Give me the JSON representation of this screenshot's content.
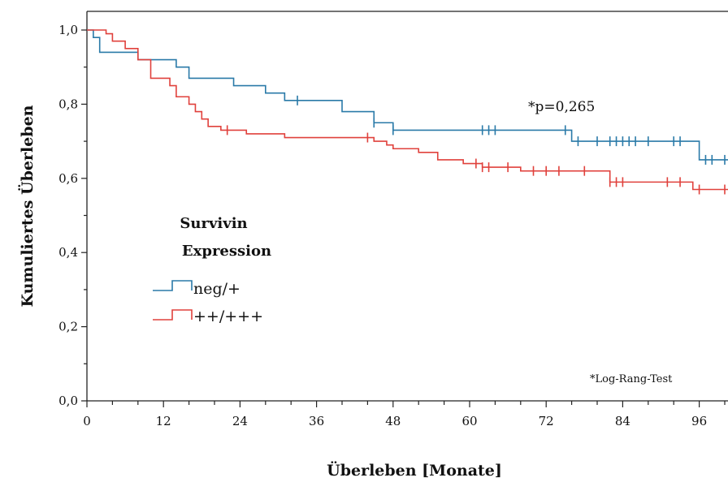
{
  "chart_data": {
    "type": "line",
    "subtype": "kaplan-meier step curve",
    "xlabel": "Überleben [Monate]",
    "ylabel": "Kumuliertes Überleben",
    "xlim": [
      0,
      101
    ],
    "ylim": [
      0,
      1.02
    ],
    "x_ticks": [
      0,
      12,
      24,
      36,
      48,
      60,
      72,
      84,
      96
    ],
    "x_minor_step": 4,
    "y_ticks": [
      0,
      0.2,
      0.4,
      0.6,
      0.8,
      1.0
    ],
    "y_tick_labels": [
      "0,0",
      "0,2",
      "0,4",
      "0,6",
      "0,8",
      "1,0"
    ],
    "y_minor_step": 0.1,
    "grid": false,
    "legend": {
      "title_line1": "Survivin",
      "title_line2": "Expression",
      "placement": "center-left"
    },
    "annotations": {
      "p_value": "*p=0,265",
      "test": "*Log-Rang-Test"
    },
    "series": [
      {
        "name": "neg/+",
        "color": "#2a7aa8",
        "steps": [
          [
            0,
            1.0
          ],
          [
            1,
            0.98
          ],
          [
            2,
            0.94
          ],
          [
            8,
            0.92
          ],
          [
            14,
            0.9
          ],
          [
            16,
            0.87
          ],
          [
            23,
            0.85
          ],
          [
            28,
            0.83
          ],
          [
            31,
            0.81
          ],
          [
            40,
            0.78
          ],
          [
            45,
            0.75
          ],
          [
            48,
            0.73
          ],
          [
            76,
            0.7
          ],
          [
            96,
            0.65
          ]
        ],
        "censored": [
          33,
          45,
          48,
          62,
          63,
          64,
          75,
          77,
          80,
          82,
          83,
          84,
          85,
          86,
          88,
          92,
          93,
          97,
          98,
          100
        ]
      },
      {
        "name": "++/+++",
        "color": "#e0413c",
        "steps": [
          [
            0,
            1.0
          ],
          [
            3,
            0.99
          ],
          [
            4,
            0.97
          ],
          [
            6,
            0.95
          ],
          [
            8,
            0.92
          ],
          [
            10,
            0.87
          ],
          [
            13,
            0.85
          ],
          [
            14,
            0.82
          ],
          [
            16,
            0.8
          ],
          [
            17,
            0.78
          ],
          [
            18,
            0.76
          ],
          [
            19,
            0.74
          ],
          [
            21,
            0.73
          ],
          [
            25,
            0.72
          ],
          [
            31,
            0.71
          ],
          [
            45,
            0.7
          ],
          [
            47,
            0.69
          ],
          [
            48,
            0.68
          ],
          [
            52,
            0.67
          ],
          [
            55,
            0.65
          ],
          [
            59,
            0.64
          ],
          [
            62,
            0.63
          ],
          [
            68,
            0.62
          ],
          [
            82,
            0.59
          ],
          [
            95,
            0.57
          ]
        ],
        "censored": [
          22,
          44,
          61,
          62,
          63,
          66,
          70,
          72,
          74,
          78,
          82,
          83,
          84,
          91,
          93,
          96,
          100
        ]
      }
    ]
  }
}
